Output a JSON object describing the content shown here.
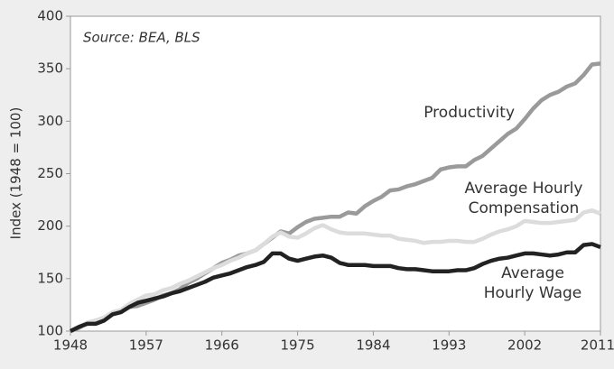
{
  "chart_data": {
    "type": "line",
    "annotations": [
      {
        "lines": [
          "Source: BEA, BLS"
        ]
      },
      {
        "lines": [
          "Productivity"
        ]
      },
      {
        "lines": [
          "Average Hourly",
          "Compensation"
        ]
      },
      {
        "lines": [
          "Average",
          "Hourly Wage"
        ]
      }
    ],
    "ylabel": "Index (1948 = 100)",
    "x": [
      1948,
      1949,
      1950,
      1951,
      1952,
      1953,
      1954,
      1955,
      1956,
      1957,
      1958,
      1959,
      1960,
      1961,
      1962,
      1963,
      1964,
      1965,
      1966,
      1967,
      1968,
      1969,
      1970,
      1971,
      1972,
      1973,
      1974,
      1975,
      1976,
      1977,
      1978,
      1979,
      1980,
      1981,
      1982,
      1983,
      1984,
      1985,
      1986,
      1987,
      1988,
      1989,
      1990,
      1991,
      1992,
      1993,
      1994,
      1995,
      1996,
      1997,
      1998,
      1999,
      2000,
      2001,
      2002,
      2003,
      2004,
      2005,
      2006,
      2007,
      2008,
      2009,
      2010,
      2011
    ],
    "series": [
      {
        "name": "Productivity",
        "color": "#9a9a9a",
        "values": [
          100,
          103,
          108,
          110,
          112,
          117,
          119,
          123,
          124,
          127,
          130,
          134,
          136,
          140,
          146,
          150,
          155,
          160,
          165,
          168,
          172,
          174,
          177,
          183,
          189,
          195,
          193,
          199,
          204,
          207,
          208,
          209,
          209,
          213,
          212,
          219,
          224,
          228,
          234,
          235,
          238,
          240,
          243,
          246,
          254,
          256,
          257,
          257,
          263,
          267,
          274,
          281,
          288,
          293,
          302,
          312,
          320,
          325,
          328,
          333,
          336,
          344,
          354,
          355
        ]
      },
      {
        "name": "Average Hourly Compensation",
        "color": "#dcdcdc",
        "values": [
          100,
          104,
          108,
          110,
          113,
          118,
          120,
          126,
          130,
          134,
          135,
          139,
          141,
          145,
          148,
          152,
          156,
          160,
          163,
          167,
          170,
          174,
          177,
          183,
          190,
          194,
          190,
          189,
          193,
          198,
          201,
          197,
          194,
          193,
          193,
          193,
          192,
          191,
          191,
          188,
          187,
          186,
          184,
          185,
          185,
          186,
          186,
          185,
          185,
          188,
          192,
          195,
          197,
          200,
          205,
          204,
          203,
          203,
          204,
          205,
          206,
          213,
          215,
          212
        ]
      },
      {
        "name": "Average Hourly Wage",
        "color": "#222222",
        "values": [
          100,
          104,
          107,
          107,
          110,
          116,
          118,
          123,
          127,
          129,
          131,
          133,
          136,
          138,
          141,
          144,
          147,
          151,
          153,
          155,
          158,
          161,
          163,
          166,
          174,
          174,
          169,
          167,
          169,
          171,
          172,
          170,
          165,
          163,
          163,
          163,
          162,
          162,
          162,
          160,
          159,
          159,
          158,
          157,
          157,
          157,
          158,
          158,
          160,
          164,
          167,
          169,
          170,
          172,
          174,
          174,
          173,
          172,
          173,
          175,
          175,
          182,
          183,
          180
        ]
      }
    ],
    "xlim": [
      1948,
      2011
    ],
    "xticks": [
      1948,
      1957,
      1966,
      1975,
      1984,
      1993,
      2002,
      2011
    ],
    "ylim": [
      100,
      400
    ],
    "yticks": [
      100,
      150,
      200,
      250,
      300,
      350,
      400
    ]
  }
}
